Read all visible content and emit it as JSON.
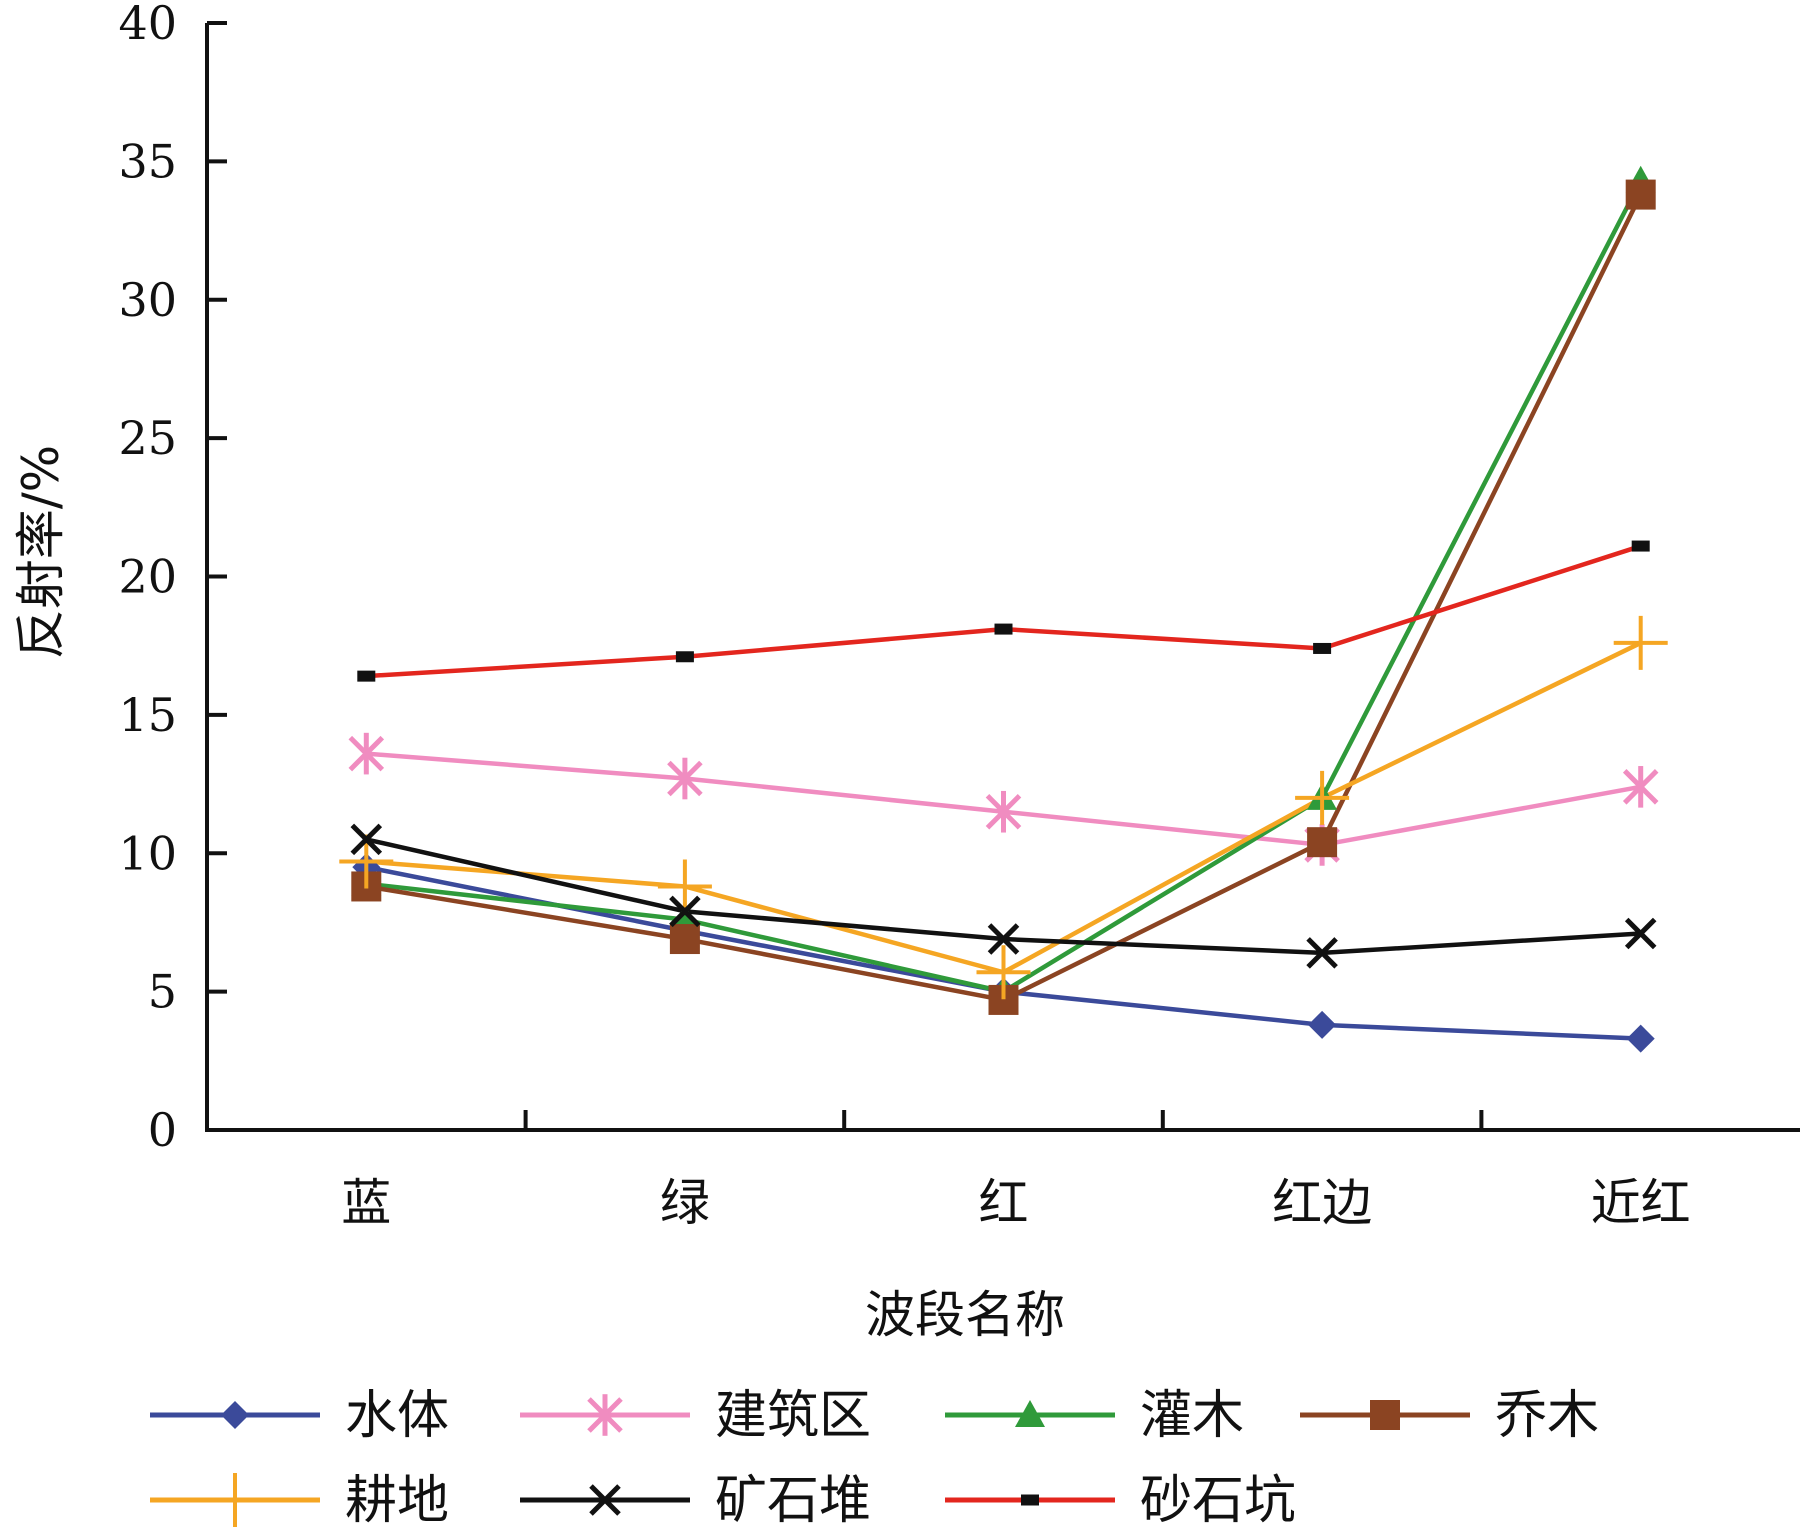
{
  "chart_data": {
    "type": "line",
    "title": "",
    "xlabel": "波段名称",
    "ylabel": "反射率/%",
    "categories": [
      "蓝",
      "绿",
      "红",
      "红边",
      "近红"
    ],
    "ylim": [
      0,
      40
    ],
    "yticks": [
      0,
      5,
      10,
      15,
      20,
      25,
      30,
      35,
      40
    ],
    "grid": false,
    "legend_position": "bottom",
    "series": [
      {
        "name": "水体",
        "color": "#3b4a9a",
        "marker": "diamond",
        "values": [
          9.5,
          7.2,
          5.0,
          3.8,
          3.3
        ]
      },
      {
        "name": "建筑区",
        "color": "#f08cc0",
        "marker": "asterisk",
        "values": [
          13.6,
          12.7,
          11.5,
          10.3,
          12.4
        ]
      },
      {
        "name": "灌木",
        "color": "#2f9a3a",
        "marker": "triangle",
        "values": [
          8.9,
          7.6,
          5.0,
          12.0,
          34.3
        ]
      },
      {
        "name": "乔木",
        "color": "#8b4422",
        "marker": "square",
        "values": [
          8.8,
          6.9,
          4.7,
          10.4,
          33.8
        ]
      },
      {
        "name": "耕地",
        "color": "#f5a623",
        "marker": "plus",
        "values": [
          9.7,
          8.8,
          5.7,
          12.0,
          17.6
        ]
      },
      {
        "name": "矿石堆",
        "color": "#111111",
        "marker": "x",
        "values": [
          10.5,
          7.9,
          6.9,
          6.4,
          7.1
        ]
      },
      {
        "name": "砂石坑",
        "color": "#e3261e",
        "marker": "dash",
        "values": [
          16.4,
          17.1,
          18.1,
          17.4,
          21.1
        ]
      }
    ]
  }
}
